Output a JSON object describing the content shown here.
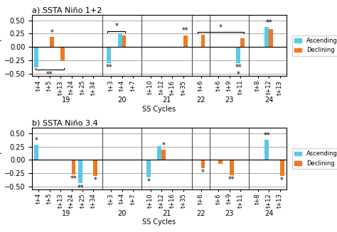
{
  "chart_data": [
    {
      "type": "bar",
      "title": "a) SSTA Niño 1+2",
      "y_label": "cc - p",
      "x_label": "SS Cycles",
      "categories": [
        "t+4",
        "t+5",
        "t+13",
        "t+24",
        "t+25",
        "t+34",
        "t+3",
        "t+4",
        "t+7",
        "t+10",
        "t+12",
        "t+16",
        "t+35",
        "t+6",
        "t+6",
        "t+9",
        "t+11",
        "t+8",
        "t+12",
        "t+13"
      ],
      "category_groups": [
        "19",
        "19",
        "19",
        "19",
        "19",
        "19",
        "20",
        "20",
        "20",
        "21",
        "21",
        "21",
        "21",
        "22",
        "23",
        "23",
        "23",
        "24",
        "24",
        "24"
      ],
      "series": [
        {
          "name": "Ascending",
          "color": "#5bc8e8",
          "values": [
            -0.38,
            0.0,
            0.0,
            0.0,
            0.0,
            0.0,
            -0.3,
            0.25,
            0.0,
            0.0,
            0.0,
            0.0,
            0.0,
            0.0,
            0.0,
            0.0,
            -0.3,
            0.0,
            0.37,
            0.0
          ]
        },
        {
          "name": "Declining",
          "color": "#f07820",
          "values": [
            0.0,
            0.19,
            -0.27,
            0.0,
            0.0,
            0.0,
            0.0,
            0.22,
            0.0,
            0.0,
            0.0,
            0.0,
            0.22,
            0.23,
            0.0,
            0.0,
            0.16,
            0.0,
            0.33,
            0.0
          ]
        }
      ],
      "ylim": [
        -0.55,
        0.6
      ],
      "yticks": [
        {
          "value": -0.5,
          "label": "−0.50"
        },
        {
          "value": -0.25,
          "label": "−0.25"
        },
        {
          "value": 0.0,
          "label": "0.00"
        },
        {
          "value": 0.25,
          "label": "0.25"
        },
        {
          "value": 0.5,
          "label": "0.50"
        }
      ],
      "grid": true,
      "legend": "right",
      "annotations": [
        {
          "text": "**",
          "categories": [
            0,
            2
          ],
          "side": "below"
        },
        {
          "text": "*",
          "category": 1,
          "series": "Declining"
        },
        {
          "text": "*",
          "categories": [
            6,
            7
          ],
          "side": "above"
        },
        {
          "text": "**",
          "category": 6,
          "series": "Ascending"
        },
        {
          "text": "**",
          "category": 12,
          "series": "Declining"
        },
        {
          "text": "*",
          "categories": [
            13,
            16
          ],
          "side": "above"
        },
        {
          "text": "**",
          "category": 16,
          "series": "Ascending"
        },
        {
          "text": "*",
          "category": 16,
          "series": "Ascending"
        },
        {
          "text": "**",
          "category": 18
        }
      ]
    },
    {
      "type": "bar",
      "title": "b) SSTA Niño 3.4",
      "y_label": "cc - p",
      "x_label": "SS Cycles",
      "categories": [
        "t+4",
        "t+5",
        "t+13",
        "t+24",
        "t+25",
        "t+34",
        "t+3",
        "t+4",
        "t+7",
        "t+10",
        "t+12",
        "t+16",
        "t+35",
        "t+6",
        "t+6",
        "t+9",
        "t+11",
        "t+8",
        "t+12",
        "t+13"
      ],
      "category_groups": [
        "19",
        "19",
        "19",
        "19",
        "19",
        "19",
        "20",
        "20",
        "20",
        "21",
        "21",
        "21",
        "21",
        "22",
        "23",
        "23",
        "23",
        "24",
        "24",
        "24"
      ],
      "series": [
        {
          "name": "Ascending",
          "color": "#5bc8e8",
          "values": [
            0.28,
            0.0,
            0.0,
            0.0,
            -0.44,
            0.0,
            0.0,
            0.0,
            0.0,
            -0.33,
            0.26,
            0.0,
            0.0,
            0.0,
            0.0,
            0.0,
            0.0,
            0.0,
            0.38,
            0.0
          ]
        },
        {
          "name": "Declining",
          "color": "#f07820",
          "values": [
            0.0,
            0.0,
            0.0,
            -0.27,
            0.0,
            -0.3,
            0.0,
            0.0,
            0.0,
            0.0,
            0.19,
            0.0,
            0.0,
            -0.15,
            -0.08,
            -0.29,
            0.0,
            0.0,
            0.0,
            -0.3
          ]
        }
      ],
      "ylim": [
        -0.55,
        0.6
      ],
      "yticks": [
        {
          "value": -0.5,
          "label": "−0.50"
        },
        {
          "value": -0.25,
          "label": "−0.25"
        },
        {
          "value": 0.0,
          "label": "0.00"
        },
        {
          "value": 0.25,
          "label": "0.25"
        },
        {
          "value": 0.5,
          "label": "0.50"
        }
      ],
      "grid": true,
      "legend": "right",
      "annotations": [
        {
          "text": "*",
          "category": 0,
          "series": "Ascending"
        },
        {
          "text": "**",
          "category": 3,
          "series": "Declining"
        },
        {
          "text": "**",
          "category": 4,
          "series": "Ascending"
        },
        {
          "text": "*",
          "category": 5,
          "series": "Declining"
        },
        {
          "text": "*",
          "category": 9,
          "series": "Ascending"
        },
        {
          "text": "*",
          "category": 10,
          "series": "Declining"
        },
        {
          "text": "*",
          "category": 13,
          "series": "Declining"
        },
        {
          "text": "**",
          "category": 15,
          "series": "Declining"
        },
        {
          "text": "**",
          "category": 18,
          "series": "Ascending"
        },
        {
          "text": "*",
          "category": 19,
          "series": "Declining"
        }
      ]
    }
  ]
}
